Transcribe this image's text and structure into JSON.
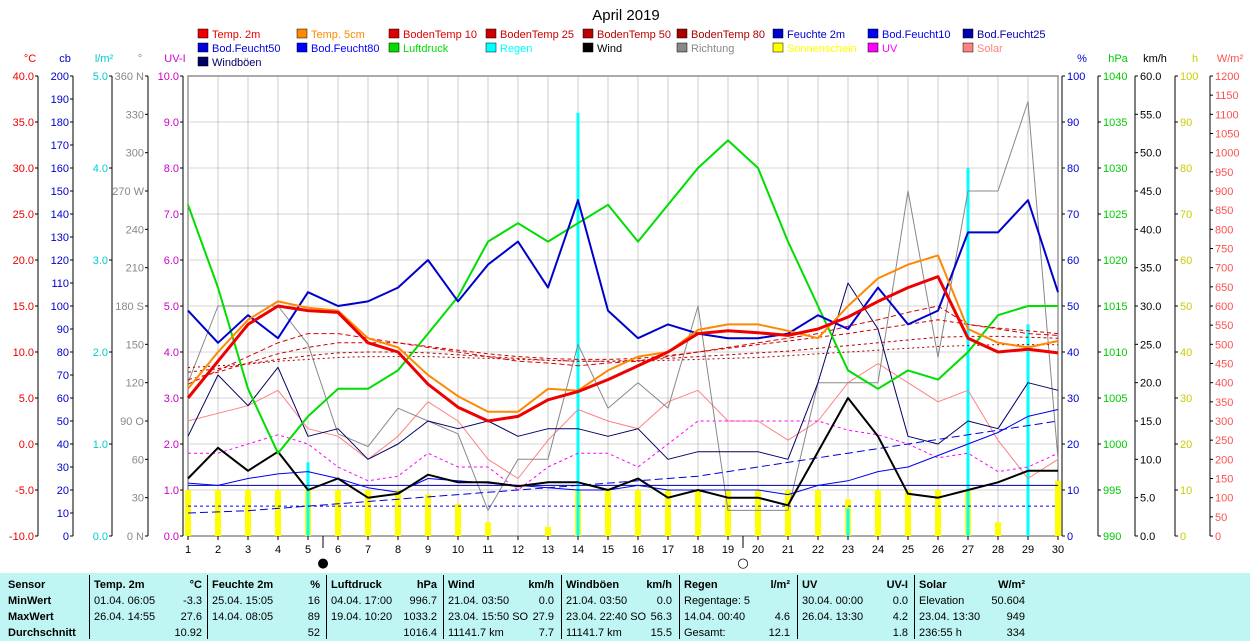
{
  "chart_data": {
    "type": "line",
    "title": "April 2019",
    "x": [
      1,
      2,
      3,
      4,
      5,
      6,
      7,
      8,
      9,
      10,
      11,
      12,
      13,
      14,
      15,
      16,
      17,
      18,
      19,
      20,
      21,
      22,
      23,
      24,
      25,
      26,
      27,
      28,
      29,
      30
    ],
    "xlim": [
      1,
      30
    ],
    "grid": true,
    "legend_position": "top",
    "legend": [
      {
        "name": "Temp. 2m",
        "color": "#ee0000"
      },
      {
        "name": "Temp. 5cm",
        "color": "#ff8800"
      },
      {
        "name": "BodenTemp 10",
        "color": "#dd0000"
      },
      {
        "name": "BodenTemp 25",
        "color": "#cc0000"
      },
      {
        "name": "BodenTemp 50",
        "color": "#bb0000"
      },
      {
        "name": "BodenTemp 80",
        "color": "#aa0000"
      },
      {
        "name": "Feuchte 2m",
        "color": "#0000cc"
      },
      {
        "name": "Bod.Feucht10",
        "color": "#0000ee"
      },
      {
        "name": "Bod.Feucht25",
        "color": "#0000aa"
      },
      {
        "name": "Bod.Feucht50",
        "color": "#0000dd"
      },
      {
        "name": "Bod.Feucht80",
        "color": "#0000ff"
      },
      {
        "name": "Luftdruck",
        "color": "#00dd00"
      },
      {
        "name": "Regen",
        "color": "#00ffff"
      },
      {
        "name": "Wind",
        "color": "#000000"
      },
      {
        "name": "Richtung",
        "color": "#888888"
      },
      {
        "name": "Sonnenschein",
        "color": "#ffff00"
      },
      {
        "name": "UV",
        "color": "#ff00ff"
      },
      {
        "name": "Solar",
        "color": "#ff8080"
      },
      {
        "name": "Windböen",
        "color": "#000066"
      }
    ],
    "axes": [
      {
        "title": "°C",
        "color": "#ee0000",
        "min": -10,
        "max": 40,
        "step": 5,
        "decimals": 1
      },
      {
        "title": "cb",
        "color": "#0000cc",
        "min": 0,
        "max": 200,
        "step": 10,
        "decimals": 0
      },
      {
        "title": "l/m²",
        "color": "#00cccc",
        "min": 0,
        "max": 5,
        "step": 1,
        "decimals": 1
      },
      {
        "title": "°",
        "color": "#888888",
        "min": 0,
        "max": 360,
        "step": 30,
        "decimals": 0,
        "labels": {
          "0": "N",
          "90": "O",
          "180": "S",
          "270": "W",
          "360": "N"
        }
      },
      {
        "title": "UV-I",
        "color": "#cc00cc",
        "min": 0,
        "max": 10,
        "step": 1,
        "decimals": 1
      },
      {
        "title": "%",
        "color": "#0000cc",
        "min": 0,
        "max": 100,
        "step": 10,
        "decimals": 0
      },
      {
        "title": "hPa",
        "color": "#00cc00",
        "min": 990,
        "max": 1040,
        "step": 5,
        "decimals": 0
      },
      {
        "title": "km/h",
        "color": "#000000",
        "min": 0,
        "max": 60,
        "step": 5,
        "decimals": 1
      },
      {
        "title": "h",
        "color": "#cccc00",
        "min": 0,
        "max": 100,
        "step": 10,
        "decimals": 0
      },
      {
        "title": "W/m²",
        "color": "#ff5050",
        "min": 0,
        "max": 1200,
        "step": 50,
        "decimals": 0
      }
    ],
    "series": [
      {
        "name": "Temp. 2m",
        "axis": "°C",
        "color": "#ee0000",
        "width": 3,
        "values": [
          5.0,
          9.0,
          13.0,
          15.0,
          14.5,
          14.3,
          11.0,
          10.0,
          6.5,
          4.0,
          2.5,
          3.0,
          4.8,
          5.7,
          7.0,
          8.5,
          10.0,
          12.0,
          12.3,
          12.1,
          11.8,
          12.5,
          13.8,
          15.5,
          17.0,
          18.2,
          11.5,
          10.0,
          10.3,
          9.9
        ]
      },
      {
        "name": "Temp. 5cm",
        "axis": "°C",
        "color": "#ff8800",
        "width": 2,
        "values": [
          6.0,
          10.0,
          13.5,
          15.5,
          14.8,
          14.5,
          11.5,
          10.5,
          7.5,
          5.2,
          3.5,
          3.5,
          6.0,
          5.8,
          8.0,
          9.5,
          10.0,
          12.4,
          13.0,
          13.0,
          12.3,
          11.5,
          15.0,
          18.0,
          19.5,
          20.5,
          12.5,
          11.0,
          10.5,
          11.2
        ]
      },
      {
        "name": "BodenTemp 10",
        "axis": "°C",
        "color": "#dd0000",
        "width": 1,
        "dash": "5,3",
        "values": [
          6.5,
          8.0,
          9.5,
          11.0,
          12.0,
          12.0,
          11.5,
          11.0,
          10.5,
          10.0,
          9.5,
          9.0,
          8.8,
          8.5,
          8.8,
          9.0,
          9.5,
          10.0,
          10.5,
          11.0,
          11.5,
          12.0,
          12.8,
          13.5,
          14.3,
          15.0,
          13.0,
          12.5,
          12.0,
          11.8
        ]
      },
      {
        "name": "BodenTemp 25",
        "axis": "°C",
        "color": "#cc0000",
        "width": 1,
        "dash": "4,3",
        "values": [
          7.0,
          7.8,
          8.8,
          9.8,
          10.5,
          11.0,
          11.0,
          11.0,
          10.6,
          10.2,
          9.8,
          9.5,
          9.3,
          9.2,
          9.2,
          9.3,
          9.6,
          10.0,
          10.4,
          10.8,
          11.2,
          11.6,
          12.0,
          12.5,
          13.0,
          13.5,
          13.0,
          12.6,
          12.3,
          12.0
        ]
      },
      {
        "name": "BodenTemp 50",
        "axis": "°C",
        "color": "#bb0000",
        "width": 1,
        "dash": "3,3",
        "values": [
          7.8,
          8.2,
          8.7,
          9.2,
          9.6,
          9.9,
          10.0,
          10.0,
          9.9,
          9.7,
          9.5,
          9.3,
          9.1,
          9.0,
          9.0,
          9.1,
          9.3,
          9.5,
          9.7,
          9.9,
          10.1,
          10.4,
          10.7,
          11.0,
          11.3,
          11.6,
          11.7,
          11.7,
          11.6,
          11.5
        ]
      },
      {
        "name": "BodenTemp 80",
        "axis": "°C",
        "color": "#aa0000",
        "width": 1,
        "dash": "2,3",
        "values": [
          8.3,
          8.5,
          8.7,
          9.0,
          9.2,
          9.4,
          9.5,
          9.5,
          9.5,
          9.4,
          9.3,
          9.2,
          9.1,
          9.0,
          9.0,
          9.0,
          9.1,
          9.2,
          9.3,
          9.4,
          9.6,
          9.8,
          10.0,
          10.2,
          10.4,
          10.6,
          10.7,
          10.8,
          10.8,
          10.8
        ]
      },
      {
        "name": "Feuchte 2m",
        "axis": "%",
        "color": "#0000cc",
        "width": 2,
        "values": [
          49,
          42,
          48,
          43,
          53,
          50,
          51,
          54,
          60,
          51,
          59,
          64,
          54,
          73,
          49,
          43,
          46,
          44,
          43,
          43,
          44,
          48,
          45,
          54,
          46,
          49,
          66,
          66,
          73,
          53
        ]
      },
      {
        "name": "Bod.Feucht10",
        "axis": "cb",
        "color": "#0000ee",
        "width": 1,
        "values": [
          23,
          22,
          25,
          27,
          28,
          25,
          21,
          19,
          25,
          24,
          23,
          22,
          21,
          20,
          20,
          22,
          20,
          20,
          20,
          20,
          18,
          22,
          24,
          28,
          30,
          35,
          40,
          45,
          52,
          55
        ]
      },
      {
        "name": "Bod.Feucht25",
        "axis": "cb",
        "color": "#0000aa",
        "width": 1,
        "values": [
          22,
          22,
          22,
          22,
          22,
          22,
          22,
          22,
          22,
          22,
          22,
          22,
          22,
          22,
          22,
          22,
          22,
          22,
          22,
          22,
          22,
          22,
          22,
          22,
          22,
          22,
          22,
          22,
          22,
          22
        ]
      },
      {
        "name": "Bod.Feucht50",
        "axis": "cb",
        "color": "#0000dd",
        "width": 1,
        "dash": "8,4",
        "values": [
          10,
          10.5,
          11,
          12,
          13,
          14,
          15,
          16,
          17,
          18,
          19,
          20,
          21,
          22,
          23,
          24,
          25,
          26,
          28,
          30,
          32,
          34,
          36,
          38,
          40,
          42,
          44,
          46,
          48,
          50
        ]
      },
      {
        "name": "Bod.Feucht80",
        "axis": "cb",
        "color": "#0000ff",
        "width": 1,
        "dash": "3,3",
        "values": [
          13,
          13,
          13,
          13,
          13,
          13,
          13,
          13,
          13,
          13,
          13,
          13,
          13,
          13,
          13,
          13,
          13,
          13,
          13,
          13,
          13,
          13,
          13,
          13,
          13,
          13,
          13,
          13,
          13,
          13
        ]
      },
      {
        "name": "Luftdruck",
        "axis": "hPa",
        "color": "#00dd00",
        "width": 2,
        "values": [
          1026,
          1017,
          1006,
          999,
          1003,
          1006,
          1006,
          1008,
          1012,
          1016,
          1022,
          1024,
          1022,
          1024,
          1026,
          1022,
          1026,
          1030,
          1033,
          1030,
          1022,
          1015,
          1008,
          1006,
          1008,
          1007,
          1010,
          1014,
          1015,
          1015
        ]
      },
      {
        "name": "Wind",
        "axis": "km/h",
        "color": "#000000",
        "width": 2,
        "values": [
          7.5,
          11.5,
          8.5,
          11.0,
          6.0,
          7.5,
          5.0,
          5.5,
          8.0,
          7.0,
          7.0,
          6.5,
          7.0,
          7.0,
          6.0,
          7.5,
          5.0,
          6.0,
          5.0,
          5.0,
          4.0,
          11.0,
          18.0,
          13.0,
          5.5,
          5.0,
          6.0,
          7.0,
          8.5,
          8.5
        ]
      },
      {
        "name": "Windböen",
        "axis": "km/h",
        "color": "#000066",
        "width": 1,
        "values": [
          13,
          21,
          17,
          22,
          13,
          14,
          10,
          12,
          15,
          14,
          15,
          13,
          14,
          14,
          13,
          14,
          10,
          11,
          11,
          11,
          10,
          20,
          33,
          27,
          13,
          12,
          15,
          14,
          20,
          19
        ]
      },
      {
        "name": "Richtung",
        "axis": "°",
        "color": "#888888",
        "width": 1,
        "values": [
          120,
          180,
          180,
          180,
          150,
          80,
          70,
          100,
          90,
          80,
          20,
          60,
          60,
          150,
          100,
          120,
          100,
          180,
          20,
          20,
          20,
          120,
          120,
          120,
          270,
          140,
          270,
          270,
          340,
          60
        ]
      },
      {
        "name": "UV",
        "axis": "UV-I",
        "color": "#ff00ff",
        "width": 1,
        "dash": "3,3",
        "values": [
          1.8,
          1.8,
          2.0,
          2.2,
          2.0,
          1.5,
          1.2,
          1.3,
          1.8,
          1.5,
          1.5,
          1.0,
          1.5,
          1.8,
          1.8,
          1.5,
          2.0,
          2.5,
          2.5,
          2.5,
          2.5,
          2.5,
          2.3,
          2.2,
          2.0,
          1.7,
          1.8,
          1.4,
          1.5,
          1.8
        ]
      },
      {
        "name": "Solar",
        "axis": "W/m²",
        "color": "#ff8080",
        "width": 1,
        "values": [
          300,
          320,
          340,
          380,
          280,
          260,
          200,
          260,
          350,
          300,
          200,
          150,
          250,
          330,
          300,
          280,
          350,
          380,
          300,
          300,
          250,
          300,
          400,
          450,
          400,
          350,
          380,
          250,
          150,
          200
        ]
      }
    ],
    "bars": [
      {
        "name": "Sonnenschein",
        "axis": "h",
        "color": "#ffff00",
        "values": [
          10,
          10,
          10,
          10,
          10,
          10,
          10,
          10,
          9,
          7,
          3,
          0,
          2,
          10,
          10,
          10,
          10,
          10,
          10,
          10,
          10,
          10,
          8,
          10,
          10,
          10,
          10,
          3,
          0,
          12
        ]
      },
      {
        "name": "Regen",
        "axis": "l/m²",
        "color": "#00ffff",
        "values": [
          0,
          0,
          0,
          0,
          0.8,
          0,
          0,
          0,
          0,
          0,
          0,
          0,
          0,
          4.6,
          0,
          0,
          0,
          0,
          0,
          0,
          0,
          0,
          0.3,
          0,
          0,
          0,
          4,
          0,
          2.3,
          0
        ]
      }
    ],
    "markers": [
      {
        "x": 5.5,
        "symbol": "●"
      },
      {
        "x": 19.5,
        "symbol": "○"
      }
    ]
  },
  "summary": [
    {
      "title": "Sensor",
      "unit": "",
      "rows": [
        [
          "MinWert",
          ""
        ],
        [
          "MaxWert",
          ""
        ],
        [
          "Durchschnitt",
          ""
        ]
      ]
    },
    {
      "title": "Temp. 2m",
      "unit": "°C",
      "rows": [
        [
          "01.04.  06:05",
          "-3.3"
        ],
        [
          "26.04.  14:55",
          "27.6"
        ],
        [
          "",
          "10.92"
        ]
      ]
    },
    {
      "title": "Feuchte 2m",
      "unit": "%",
      "rows": [
        [
          "25.04.  15:05",
          "16"
        ],
        [
          "14.04.  08:05",
          "89"
        ],
        [
          "",
          "52"
        ]
      ]
    },
    {
      "title": "Luftdruck",
      "unit": "hPa",
      "rows": [
        [
          "04.04.  17:00",
          "996.7"
        ],
        [
          "19.04.  10:20",
          "1033.2"
        ],
        [
          "",
          "1016.4"
        ]
      ]
    },
    {
      "title": "Wind",
      "unit": "km/h",
      "rows": [
        [
          "21.04.  03:50",
          "0.0"
        ],
        [
          "23.04.  15:50 SO",
          "27.9"
        ],
        [
          "11141.7 km",
          "7.7"
        ]
      ]
    },
    {
      "title": "Windböen",
      "unit": "km/h",
      "rows": [
        [
          "21.04.  03:50",
          "0.0"
        ],
        [
          "23.04.  22:40 SO",
          "56.3"
        ],
        [
          "11141.7 km",
          "15.5"
        ]
      ]
    },
    {
      "title": "Regen",
      "unit": "l/m²",
      "rows": [
        [
          "Regentage: 5",
          ""
        ],
        [
          "14.04.  00:40",
          "4.6"
        ],
        [
          "Gesamt:",
          "12.1"
        ]
      ]
    },
    {
      "title": "UV",
      "unit": "UV-I",
      "rows": [
        [
          "30.04.  00:00",
          "0.0"
        ],
        [
          "26.04.  13:30",
          "4.2"
        ],
        [
          "",
          "1.8"
        ]
      ]
    },
    {
      "title": "Solar",
      "unit": "W/m²",
      "rows": [
        [
          "Elevation",
          "50.604"
        ],
        [
          "23.04.  13:30",
          "949"
        ],
        [
          "236:55 h",
          "334"
        ]
      ]
    }
  ]
}
